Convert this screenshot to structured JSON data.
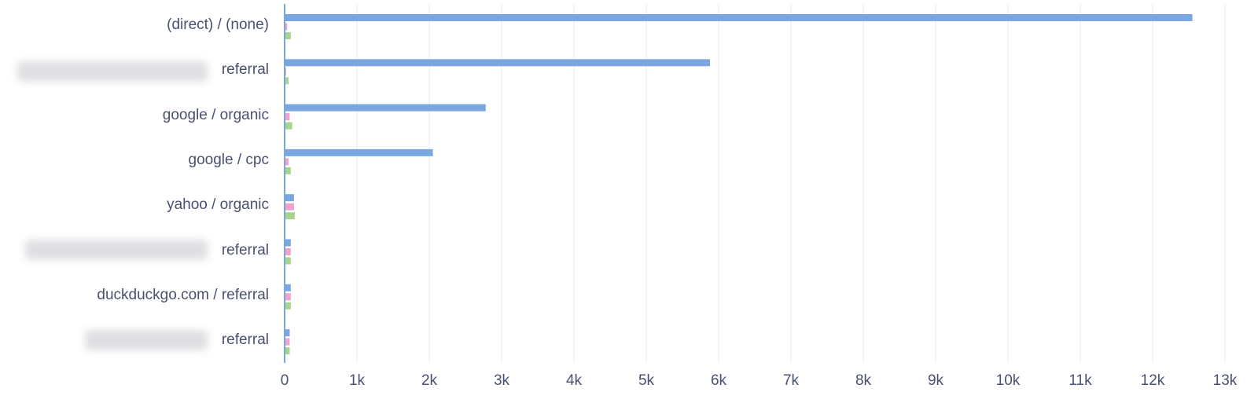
{
  "chart_data": {
    "type": "bar",
    "orientation": "horizontal",
    "categories": [
      "(direct) / (none)",
      "referral",
      "google / organic",
      "google / cpc",
      "yahoo / organic",
      "referral",
      "duckduckgo.com / referral",
      "referral"
    ],
    "series": [
      {
        "color": "#7aa7e0",
        "values": [
          12550,
          5880,
          2780,
          2050,
          130,
          85,
          85,
          70
        ]
      },
      {
        "color": "#f0a3d0",
        "values": [
          35,
          20,
          70,
          55,
          130,
          85,
          85,
          70
        ]
      },
      {
        "color": "#a6d68c",
        "values": [
          85,
          55,
          105,
          85,
          140,
          85,
          85,
          70
        ]
      }
    ],
    "xlim": [
      0,
      13000
    ],
    "xticks": [
      "0",
      "1k",
      "2k",
      "3k",
      "4k",
      "5k",
      "6k",
      "7k",
      "8k",
      "9k",
      "10k",
      "11k",
      "12k",
      "13k"
    ],
    "grid": true,
    "xlabel": "",
    "ylabel": ""
  }
}
